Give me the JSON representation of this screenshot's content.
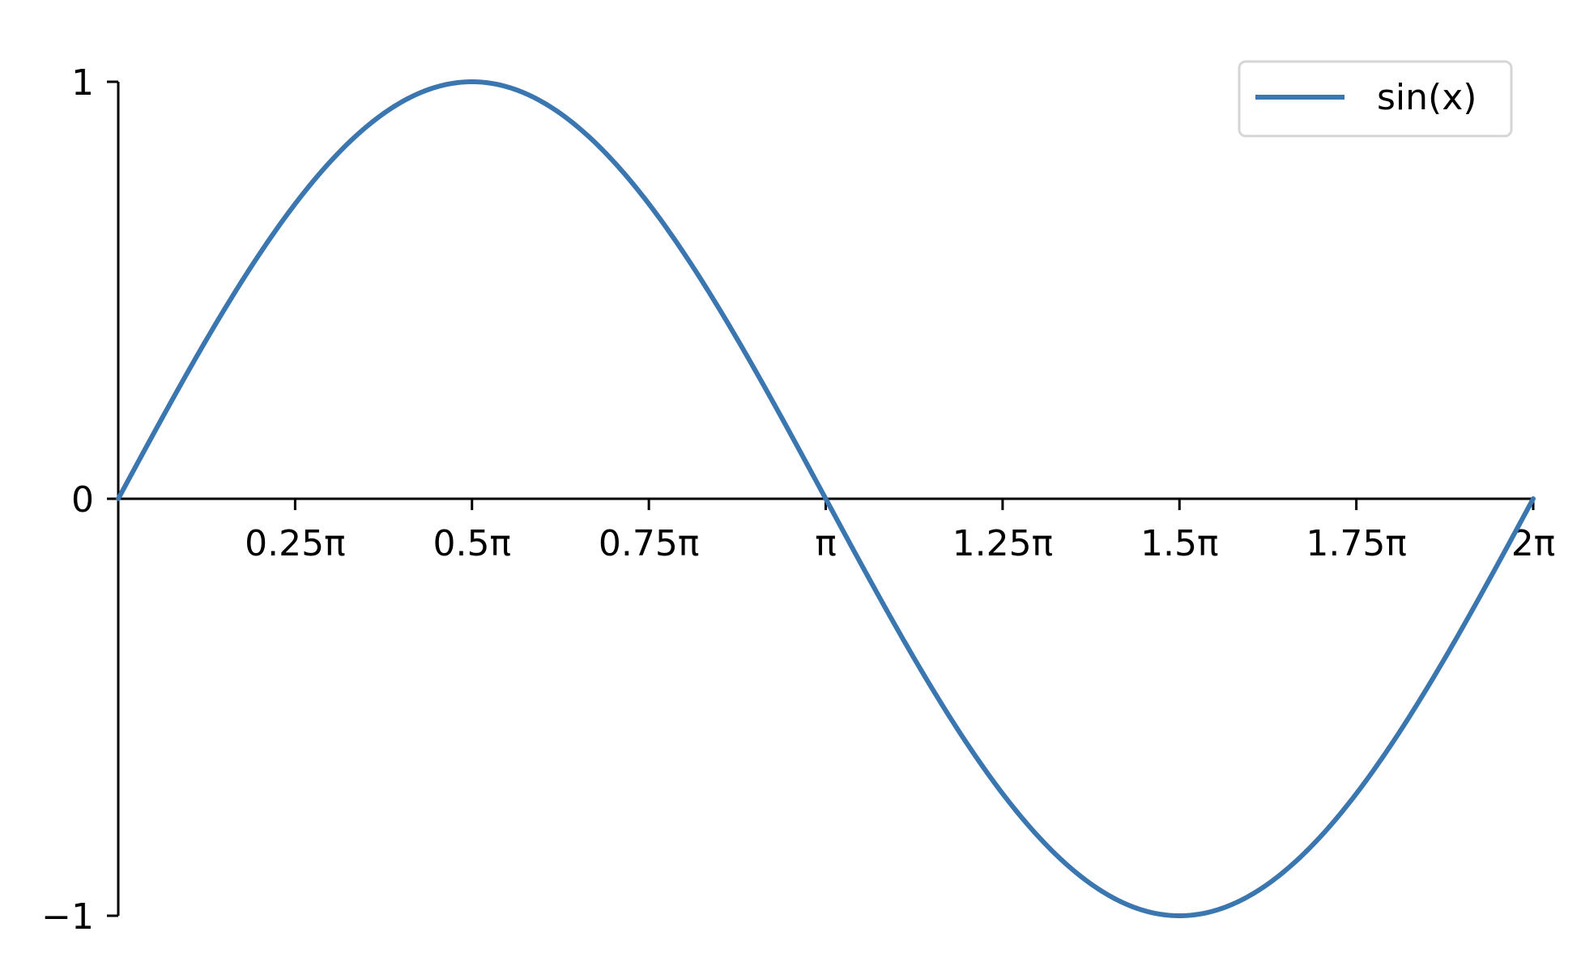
{
  "chart_data": {
    "type": "line",
    "function": "sin(x)",
    "x_range": [
      0,
      6.283185307179586
    ],
    "samples": 400,
    "xlim": [
      0,
      6.283185307179586
    ],
    "ylim": [
      -1,
      1
    ],
    "x_ticks": [
      {
        "value": 0.7853981633974483,
        "label": "0.25π"
      },
      {
        "value": 1.5707963267948966,
        "label": "0.5π"
      },
      {
        "value": 2.356194490192345,
        "label": "0.75π"
      },
      {
        "value": 3.141592653589793,
        "label": "π"
      },
      {
        "value": 3.9269908169872414,
        "label": "1.25π"
      },
      {
        "value": 4.71238898038469,
        "label": "1.5π"
      },
      {
        "value": 5.497787143782138,
        "label": "1.75π"
      },
      {
        "value": 6.283185307179586,
        "label": "2π"
      }
    ],
    "y_ticks": [
      {
        "value": 1,
        "label": "1"
      },
      {
        "value": 0,
        "label": "0"
      },
      {
        "value": -1,
        "label": "−1"
      }
    ],
    "series": [
      {
        "name": "sin(x)",
        "color": "#3a76af"
      }
    ],
    "legend": {
      "placement": "top-right",
      "border_color": "#d6d6d6"
    },
    "spines": {
      "left": "zero-start",
      "bottom": "at-y-zero"
    },
    "grid": false,
    "title": "",
    "xlabel": "",
    "ylabel": ""
  }
}
